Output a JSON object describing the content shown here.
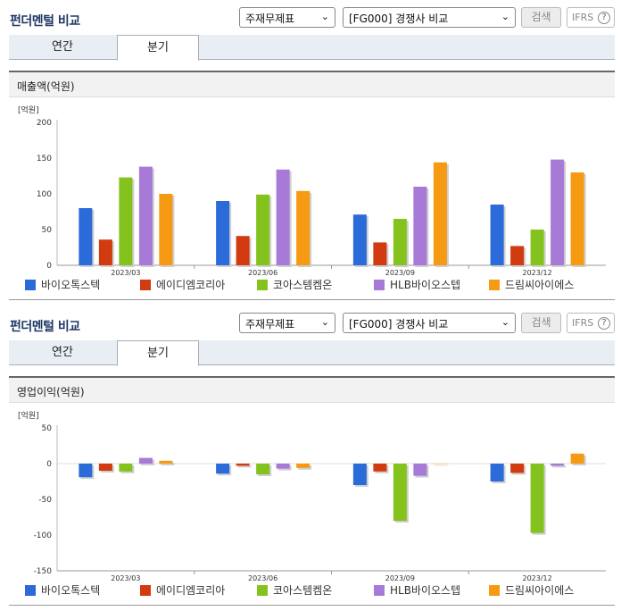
{
  "header": {
    "title": "펀더멘털 비교",
    "select_item": "주재무제표",
    "select_compare": "[FG000] 경쟁사 비교",
    "search_label": "검색",
    "ifrs_label": "IFRS",
    "help_glyph": "?"
  },
  "tabs": [
    {
      "label": "연간"
    },
    {
      "label": "분기"
    }
  ],
  "series": [
    {
      "name": "바이오톡스텍",
      "color": "#2a6ad9"
    },
    {
      "name": "에이디엠코리아",
      "color": "#d23a10"
    },
    {
      "name": "코아스템켐온",
      "color": "#84c21d"
    },
    {
      "name": "HLB바이오스텝",
      "color": "#a77ad8"
    },
    {
      "name": "드림씨아이에스",
      "color": "#f59a12"
    }
  ],
  "charts": [
    {
      "section_title": "매출액(억원)",
      "unit_label": "[억원]",
      "chart_data": {
        "type": "bar",
        "categories": [
          "2023/03",
          "2023/06",
          "2023/09",
          "2023/12"
        ],
        "ylim": [
          0,
          200
        ],
        "yticks": [
          0,
          50,
          100,
          150,
          200
        ],
        "series": [
          {
            "name": "바이오톡스텍",
            "values": [
              80,
              90,
              71,
              85
            ]
          },
          {
            "name": "에이디엠코리아",
            "values": [
              36,
              41,
              32,
              27
            ]
          },
          {
            "name": "코아스템켐온",
            "values": [
              123,
              99,
              65,
              50
            ]
          },
          {
            "name": "HLB바이오스텝",
            "values": [
              138,
              134,
              110,
              148
            ]
          },
          {
            "name": "드림씨아이에스",
            "values": [
              100,
              104,
              144,
              130
            ]
          }
        ]
      }
    },
    {
      "section_title": "영업이익(억원)",
      "unit_label": "[억원]",
      "chart_data": {
        "type": "bar",
        "categories": [
          "2023/03",
          "2023/06",
          "2023/09",
          "2023/12"
        ],
        "ylim": [
          -150,
          50
        ],
        "yticks": [
          -150,
          -100,
          -50,
          0,
          50
        ],
        "series": [
          {
            "name": "바이오톡스텍",
            "values": [
              -19,
              -14,
              -30,
              -25
            ]
          },
          {
            "name": "에이디엠코리아",
            "values": [
              -10,
              -3,
              -11,
              -13
            ]
          },
          {
            "name": "코아스템켐온",
            "values": [
              -11,
              -15,
              -80,
              -97
            ]
          },
          {
            "name": "HLB바이오스텝",
            "values": [
              8,
              -7,
              -17,
              -3
            ]
          },
          {
            "name": "드림씨아이에스",
            "values": [
              4,
              -6,
              0,
              14
            ]
          }
        ]
      }
    }
  ]
}
